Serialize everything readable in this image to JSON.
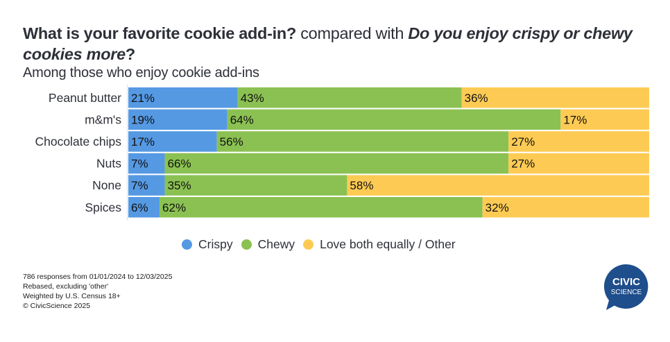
{
  "title": {
    "question1": "What is your favorite cookie add-in",
    "qmark1": "?",
    "connector": " compared with ",
    "question2": "Do you enjoy crispy or chewy cookies more",
    "qmark2": "?"
  },
  "subtitle": "Among those who enjoy cookie add-ins",
  "chart_data": {
    "type": "bar",
    "orientation": "horizontal",
    "stacked": true,
    "title": "What is your favorite cookie add-in? compared with Do you enjoy crispy or chewy cookies more?",
    "subtitle": "Among those who enjoy cookie add-ins",
    "xlabel": "",
    "ylabel": "",
    "xlim": [
      0,
      100
    ],
    "grid": false,
    "legend_position": "bottom-center",
    "categories": [
      "Peanut butter",
      "m&m's",
      "Chocolate chips",
      "Nuts",
      "None",
      "Spices"
    ],
    "series": [
      {
        "name": "Crispy",
        "color": "#5599e3",
        "values": [
          21,
          19,
          17,
          7,
          7,
          6
        ]
      },
      {
        "name": "Chewy",
        "color": "#8bc152",
        "values": [
          43,
          64,
          56,
          66,
          35,
          62
        ]
      },
      {
        "name": "Love both equally / Other",
        "color": "#fdcb54",
        "values": [
          36,
          17,
          27,
          27,
          58,
          32
        ]
      }
    ],
    "value_suffix": "%"
  },
  "legend": [
    {
      "label": "Crispy",
      "color": "#5599e3"
    },
    {
      "label": "Chewy",
      "color": "#8bc152"
    },
    {
      "label": "Love both equally / Other",
      "color": "#fdcb54"
    }
  ],
  "footer": {
    "line1": "786 responses from 01/01/2024 to 12/03/2025",
    "line2": "Rebased, excluding 'other'",
    "line3": "Weighted by U.S. Census 18+",
    "line4": "© CivicScience 2025"
  },
  "logo": {
    "line1": "CIVIC",
    "line2": "SCIENCE",
    "color": "#1f4e8c"
  }
}
